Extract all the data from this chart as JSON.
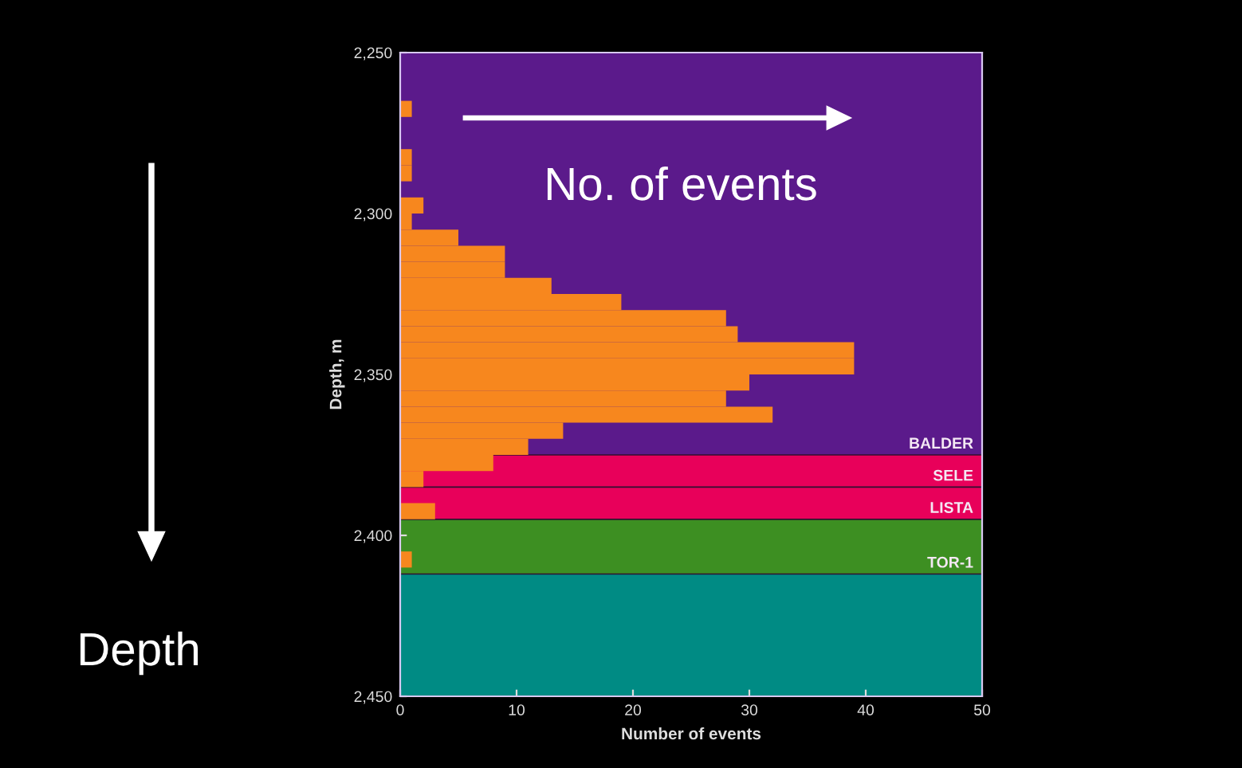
{
  "chart_data": {
    "type": "histogram",
    "orientation": "horizontal",
    "xlabel": "Number of events",
    "ylabel": "Depth, m",
    "annotations": [
      "No. of events",
      "Depth"
    ],
    "bins": [
      2265,
      2270,
      2275,
      2280,
      2285,
      2290,
      2295,
      2300,
      2305,
      2310,
      2315,
      2320,
      2325,
      2330,
      2335,
      2340,
      2345,
      2350,
      2355,
      2360,
      2365,
      2370,
      2375,
      2380,
      2385,
      2390,
      2395,
      2400,
      2405,
      2410
    ],
    "values": [
      1,
      0,
      0,
      1,
      1,
      0,
      2,
      1,
      5,
      9,
      9,
      13,
      19,
      28,
      29,
      39,
      39,
      30,
      28,
      32,
      14,
      11,
      8,
      2,
      0,
      3,
      0,
      0,
      1
    ],
    "color": "#f7871e",
    "xlim": [
      0,
      50
    ],
    "xticks": [
      0,
      10,
      20,
      30,
      40,
      50
    ],
    "ylim": [
      2450,
      2250
    ],
    "yticks": [
      {
        "value": 2250,
        "label": "2,250"
      },
      {
        "value": 2300,
        "label": "2,300"
      },
      {
        "value": 2350,
        "label": "2,350"
      },
      {
        "value": 2400,
        "label": "2,400"
      },
      {
        "value": 2450,
        "label": "2,450"
      }
    ],
    "bands": [
      {
        "axis": "y",
        "from": 2250,
        "to": 2375,
        "label": "BALDER",
        "color": "#5b1a8b"
      },
      {
        "axis": "y",
        "from": 2375,
        "to": 2385,
        "label": "SELE",
        "color": "#e8005a"
      },
      {
        "axis": "y",
        "from": 2385,
        "to": 2395,
        "label": "LISTA",
        "color": "#e8005a"
      },
      {
        "axis": "y",
        "from": 2395,
        "to": 2412,
        "label": "TOR-1",
        "color": "#3d8f22"
      },
      {
        "axis": "y",
        "from": 2412,
        "to": 2450,
        "color": "#008b84"
      }
    ],
    "grid": false
  }
}
